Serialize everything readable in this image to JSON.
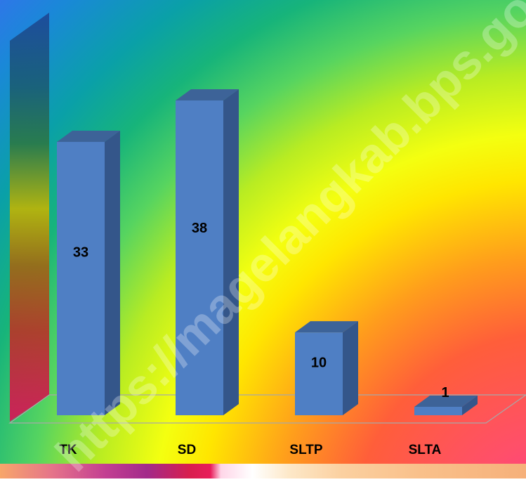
{
  "watermark": "https://magelangkab.bps.go.id",
  "colors": {
    "bar_front": "#4f7fc4",
    "bar_side": "#34568a",
    "bar_top": "#3d6398",
    "label_color": "#000000"
  },
  "chart_data": {
    "type": "bar",
    "categories": [
      "TK",
      "SD",
      "SLTP",
      "SLTA"
    ],
    "values": [
      33,
      38,
      10,
      1
    ],
    "title": "",
    "xlabel": "",
    "ylabel": "",
    "ylim": [
      0,
      38
    ],
    "grid": false,
    "legend": "none",
    "data_labels": [
      "33",
      "38",
      "10",
      "1"
    ],
    "style": "3d-column"
  }
}
